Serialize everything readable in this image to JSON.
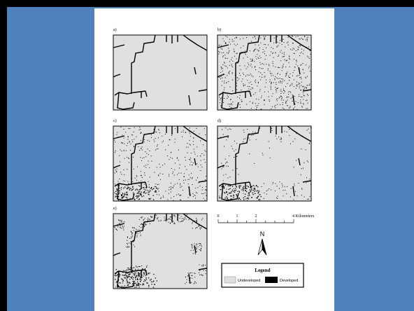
{
  "panels": [
    {
      "label": "a)"
    },
    {
      "label": "b)"
    },
    {
      "label": "c)"
    },
    {
      "label": "d)"
    },
    {
      "label": "e)"
    }
  ],
  "scale_bar": {
    "labels": [
      "0",
      "1",
      "2",
      "4 Kilometers"
    ]
  },
  "north_arrow": {
    "label": "N"
  },
  "legend": {
    "title": "Legend",
    "items": [
      "Undeveloped",
      "Developed"
    ]
  }
}
